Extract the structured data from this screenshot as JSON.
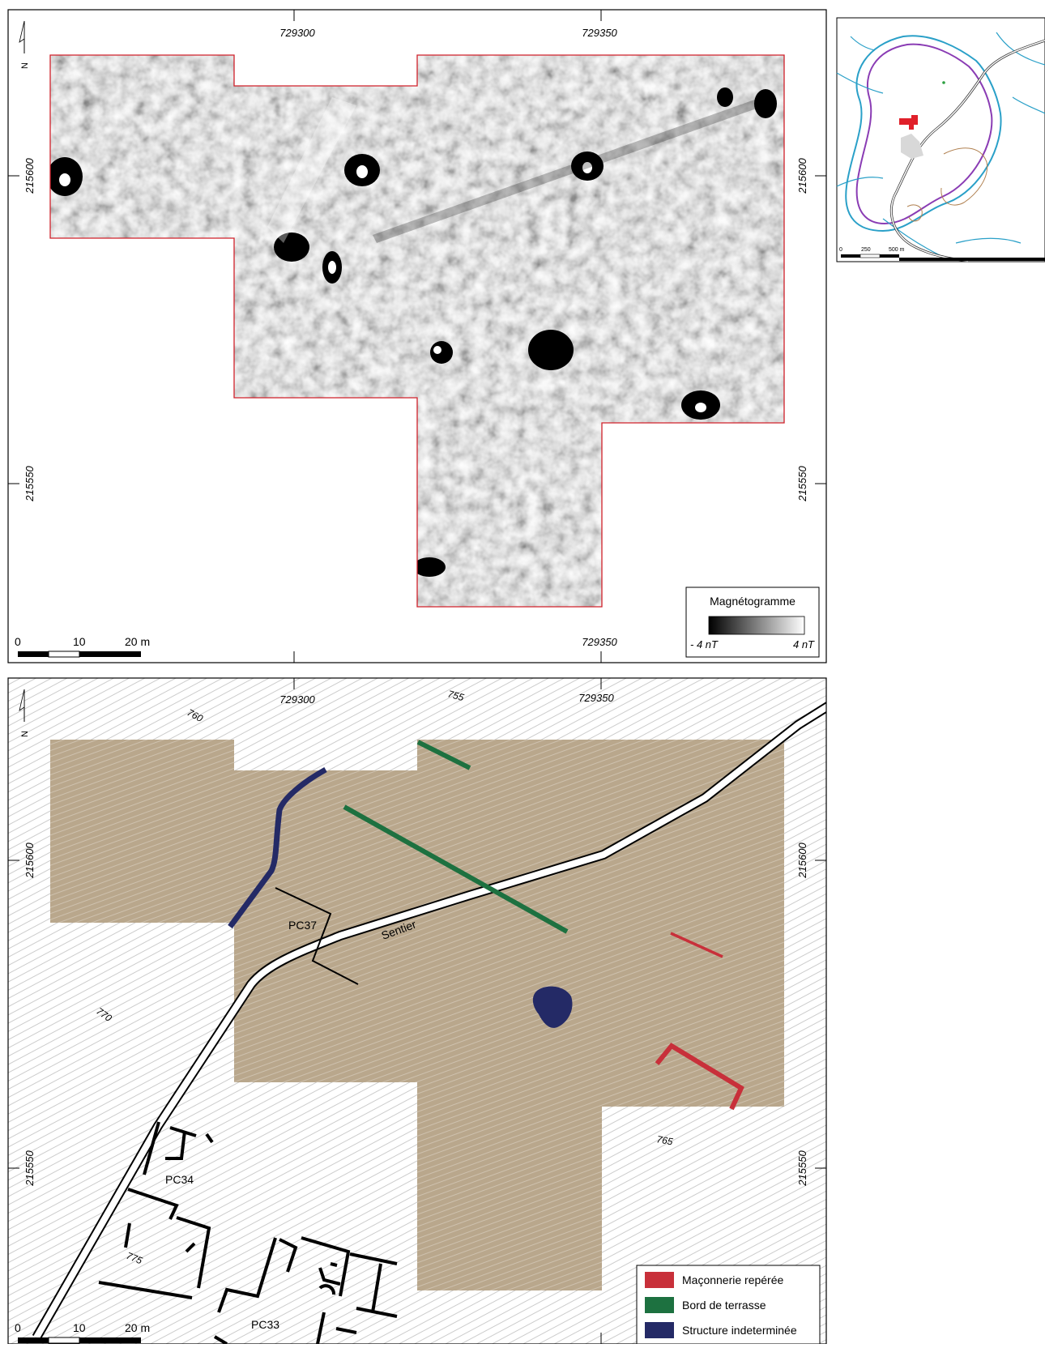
{
  "top_map": {
    "coords": {
      "x_top_left": "729300",
      "x_top_right": "729350",
      "x_bottom_right": "729350",
      "y_left_upper": "215600",
      "y_left_lower": "215550",
      "y_right_upper": "215600",
      "y_right_lower": "215550"
    },
    "north": "N",
    "scale": {
      "zero": "0",
      "mid": "10",
      "end": "20 m"
    },
    "legend": {
      "title": "Magnétogramme",
      "min": "- 4 nT",
      "max": "4 nT"
    }
  },
  "inset_map": {
    "scale": {
      "zero": "0",
      "mid": "250",
      "end": "500 m"
    }
  },
  "bottom_map": {
    "coords": {
      "x_top_left": "729300",
      "x_top_right": "729350",
      "y_left_upper": "215600",
      "y_left_lower": "215550",
      "y_right_upper": "215600",
      "y_right_lower": "215550"
    },
    "north": "N",
    "elevations": [
      "760",
      "755",
      "770",
      "765",
      "775"
    ],
    "labels": {
      "sentier": "Sentier",
      "pc37": "PC37",
      "pc34": "PC34",
      "pc33": "PC33"
    },
    "scale": {
      "zero": "0",
      "mid": "10",
      "end": "20 m"
    },
    "legend": [
      {
        "label": "Maçonnerie repérée",
        "color": "#c8303a"
      },
      {
        "label": "Bord de terrasse",
        "color": "#1d7140"
      },
      {
        "label": "Structure indeterminée",
        "color": "#242a66"
      }
    ],
    "survey_color": "#b9a78c"
  }
}
